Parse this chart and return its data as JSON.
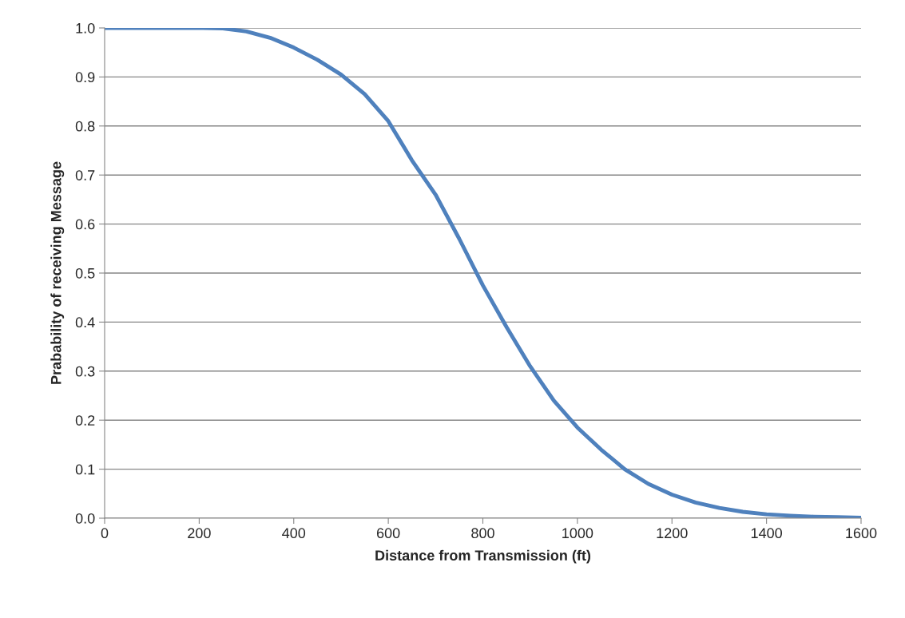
{
  "chart_data": {
    "type": "line",
    "xlabel": "Distance from Transmission (ft)",
    "ylabel": "Prabability of receiving Message",
    "x": [
      0,
      100,
      200,
      250,
      300,
      350,
      400,
      450,
      500,
      550,
      600,
      650,
      700,
      750,
      800,
      850,
      900,
      950,
      1000,
      1050,
      1100,
      1150,
      1200,
      1250,
      1300,
      1350,
      1400,
      1450,
      1500,
      1550,
      1600
    ],
    "series": [
      {
        "color": "#4f81bd",
        "values": [
          1,
          1,
          1,
          0.999,
          0.993,
          0.98,
          0.96,
          0.935,
          0.905,
          0.865,
          0.81,
          0.73,
          0.66,
          0.57,
          0.475,
          0.39,
          0.31,
          0.24,
          0.185,
          0.14,
          0.1,
          0.07,
          0.048,
          0.032,
          0.021,
          0.013,
          0.008,
          0.005,
          0.003,
          0.002,
          0.001
        ]
      }
    ],
    "xlim": [
      0,
      1600
    ],
    "xticks": [
      0,
      200,
      400,
      600,
      800,
      1000,
      1200,
      1400,
      1600
    ],
    "ylim": [
      0,
      1
    ],
    "yticks": [
      {
        "value": 0,
        "label": "0.0"
      },
      {
        "value": 0.1,
        "label": "0.1"
      },
      {
        "value": 0.2,
        "label": "0.2"
      },
      {
        "value": 0.3,
        "label": "0.3"
      },
      {
        "value": 0.4,
        "label": "0.4"
      },
      {
        "value": 0.5,
        "label": "0.5"
      },
      {
        "value": 0.6,
        "label": "0.6"
      },
      {
        "value": 0.7,
        "label": "0.7"
      },
      {
        "value": 0.8,
        "label": "0.8"
      },
      {
        "value": 0.9,
        "label": "0.9"
      },
      {
        "value": 1,
        "label": "1.0"
      }
    ],
    "grid": "y",
    "marker": "none",
    "line_style": "solid"
  }
}
